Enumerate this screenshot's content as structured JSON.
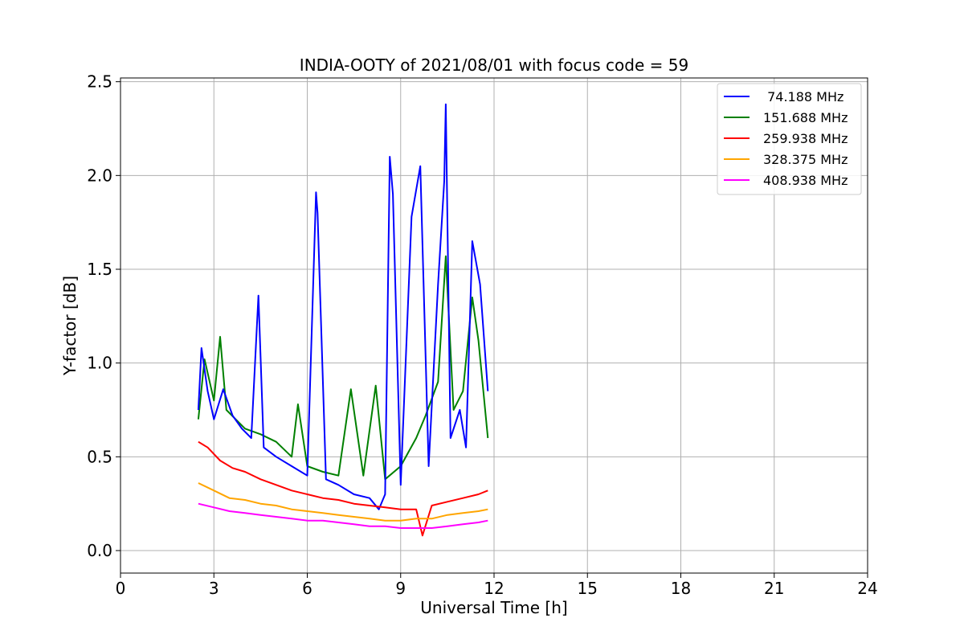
{
  "chart_data": {
    "type": "line",
    "title": "INDIA-OOTY of 2021/08/01 with focus code = 59",
    "xlabel": "Universal Time [h]",
    "ylabel": "Y-factor [dB]",
    "xlim": [
      0,
      24
    ],
    "ylim": [
      -0.12,
      2.52
    ],
    "xticks": [
      0,
      3,
      6,
      9,
      12,
      15,
      18,
      21,
      24
    ],
    "xtick_labels": [
      "0",
      "3",
      "6",
      "9",
      "12",
      "15",
      "18",
      "21",
      "24"
    ],
    "yticks": [
      0.0,
      0.5,
      1.0,
      1.5,
      2.0,
      2.5
    ],
    "ytick_labels": [
      "0.0",
      "0.5",
      "1.0",
      "1.5",
      "2.0",
      "2.5"
    ],
    "grid": true,
    "legend_position": "top-right",
    "series": [
      {
        "name": " 74.188 MHz",
        "color": "#0000ff",
        "x": [
          2.5,
          2.6,
          2.8,
          3.0,
          3.3,
          3.6,
          3.9,
          4.2,
          4.43,
          4.6,
          5.0,
          5.5,
          6.0,
          6.28,
          6.33,
          6.6,
          7.0,
          7.5,
          8.0,
          8.3,
          8.5,
          8.65,
          8.75,
          9.0,
          9.35,
          9.63,
          9.9,
          10.2,
          10.4,
          10.45,
          10.6,
          10.9,
          11.1,
          11.3,
          11.55,
          11.8
        ],
        "y": [
          0.75,
          1.08,
          0.85,
          0.7,
          0.86,
          0.72,
          0.65,
          0.6,
          1.36,
          0.55,
          0.5,
          0.45,
          0.4,
          1.91,
          1.8,
          0.38,
          0.35,
          0.3,
          0.28,
          0.22,
          0.3,
          2.1,
          1.9,
          0.35,
          1.78,
          2.05,
          0.45,
          1.42,
          1.97,
          2.38,
          0.6,
          0.75,
          0.55,
          1.65,
          1.42,
          0.85
        ]
      },
      {
        "name": "151.688 MHz",
        "color": "#008000",
        "x": [
          2.5,
          2.7,
          3.0,
          3.2,
          3.4,
          3.7,
          4.0,
          4.5,
          5.0,
          5.5,
          5.7,
          6.0,
          6.5,
          7.0,
          7.4,
          7.8,
          8.2,
          8.5,
          9.0,
          9.5,
          9.8,
          10.2,
          10.45,
          10.7,
          11.0,
          11.3,
          11.5,
          11.8
        ],
        "y": [
          0.7,
          1.02,
          0.8,
          1.14,
          0.75,
          0.7,
          0.65,
          0.62,
          0.58,
          0.5,
          0.78,
          0.45,
          0.42,
          0.4,
          0.86,
          0.4,
          0.88,
          0.38,
          0.45,
          0.6,
          0.72,
          0.9,
          1.57,
          0.75,
          0.85,
          1.35,
          1.12,
          0.6
        ]
      },
      {
        "name": "259.938 MHz",
        "color": "#ff0000",
        "x": [
          2.5,
          2.8,
          3.2,
          3.6,
          4.0,
          4.5,
          5.0,
          5.5,
          6.0,
          6.5,
          7.0,
          7.5,
          8.0,
          8.5,
          9.0,
          9.5,
          9.7,
          10.0,
          10.5,
          11.0,
          11.5,
          11.8
        ],
        "y": [
          0.58,
          0.55,
          0.48,
          0.44,
          0.42,
          0.38,
          0.35,
          0.32,
          0.3,
          0.28,
          0.27,
          0.25,
          0.24,
          0.23,
          0.22,
          0.22,
          0.08,
          0.24,
          0.26,
          0.28,
          0.3,
          0.32
        ]
      },
      {
        "name": "328.375 MHz",
        "color": "#ffa500",
        "x": [
          2.5,
          3.0,
          3.5,
          4.0,
          4.5,
          5.0,
          5.5,
          6.0,
          6.5,
          7.0,
          7.5,
          8.0,
          8.5,
          9.0,
          9.5,
          10.0,
          10.5,
          11.0,
          11.5,
          11.8
        ],
        "y": [
          0.36,
          0.32,
          0.28,
          0.27,
          0.25,
          0.24,
          0.22,
          0.21,
          0.2,
          0.19,
          0.18,
          0.17,
          0.16,
          0.16,
          0.17,
          0.17,
          0.19,
          0.2,
          0.21,
          0.22
        ]
      },
      {
        "name": "408.938 MHz",
        "color": "#ff00ff",
        "x": [
          2.5,
          3.0,
          3.5,
          4.0,
          4.5,
          5.0,
          5.5,
          6.0,
          6.5,
          7.0,
          7.5,
          8.0,
          8.5,
          9.0,
          9.5,
          10.0,
          10.5,
          11.0,
          11.5,
          11.8
        ],
        "y": [
          0.25,
          0.23,
          0.21,
          0.2,
          0.19,
          0.18,
          0.17,
          0.16,
          0.16,
          0.15,
          0.14,
          0.13,
          0.13,
          0.12,
          0.12,
          0.12,
          0.13,
          0.14,
          0.15,
          0.16
        ]
      }
    ]
  }
}
